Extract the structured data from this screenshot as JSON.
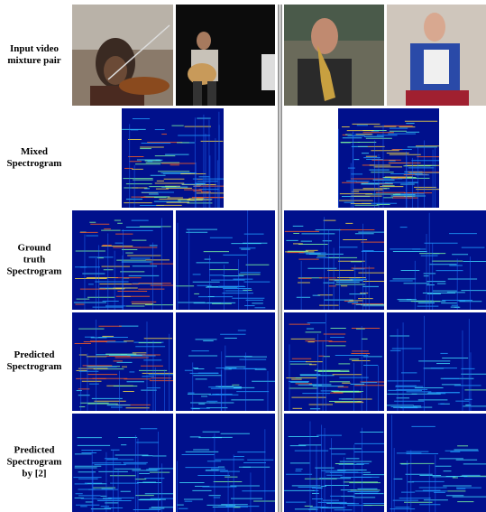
{
  "rows": [
    {
      "label": [
        "Input video",
        "mixture pair"
      ]
    },
    {
      "label": [
        "Mixed",
        "Spectrogram"
      ]
    },
    {
      "label": [
        "Ground",
        "truth",
        "Spectrogram"
      ]
    },
    {
      "label": [
        "Predicted",
        "Spectrogram"
      ]
    },
    {
      "label": [
        "Predicted",
        "Spectrogram",
        "by [2]"
      ]
    }
  ]
}
